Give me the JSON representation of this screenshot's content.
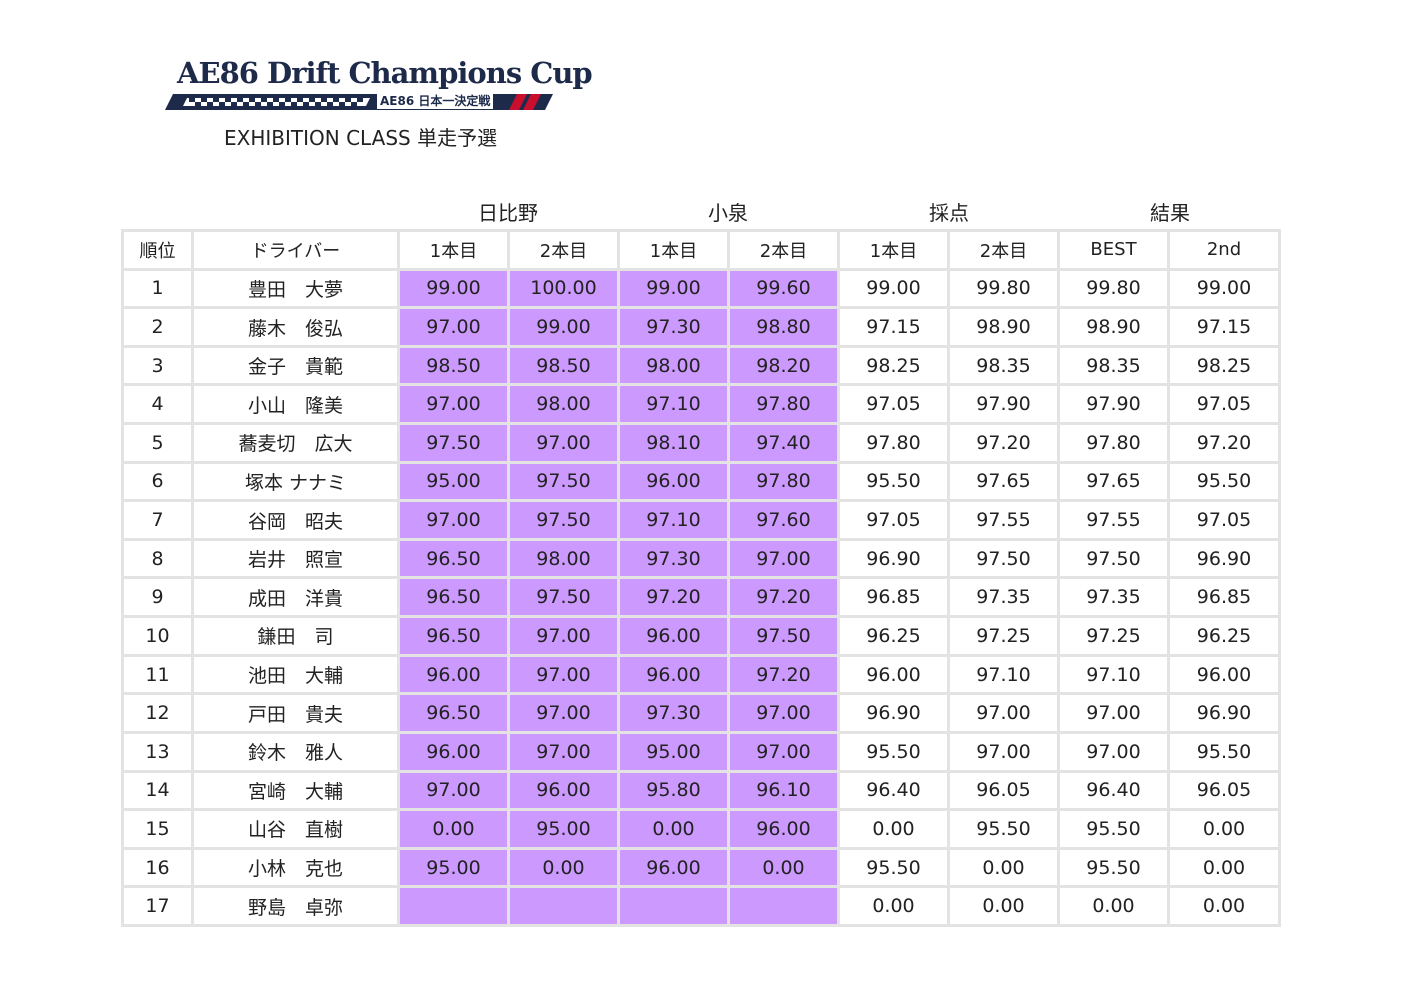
{
  "logo": {
    "title": "AE86 Drift Champions Cup",
    "subtitle": "AE86 日本一決定戦",
    "colors": {
      "navy": "#1d2a4a",
      "red": "#c8102e"
    }
  },
  "subtitle": "EXHIBITION CLASS 単走予選",
  "groups": [
    "日比野",
    "小泉",
    "採点",
    "結果"
  ],
  "headers": [
    "順位",
    "ドライバー",
    "1本目",
    "2本目",
    "1本目",
    "2本目",
    "1本目",
    "2本目",
    "BEST",
    "2nd"
  ],
  "highlight_color": "#cc99ff",
  "rows": [
    {
      "rank": "1",
      "driver": "豊田　大夢",
      "h1": "99.00",
      "h2": "100.00",
      "k1": "99.00",
      "k2": "99.60",
      "s1": "99.00",
      "s2": "99.80",
      "best": "99.80",
      "second": "99.00"
    },
    {
      "rank": "2",
      "driver": "藤木　俊弘",
      "h1": "97.00",
      "h2": "99.00",
      "k1": "97.30",
      "k2": "98.80",
      "s1": "97.15",
      "s2": "98.90",
      "best": "98.90",
      "second": "97.15"
    },
    {
      "rank": "3",
      "driver": "金子　貴範",
      "h1": "98.50",
      "h2": "98.50",
      "k1": "98.00",
      "k2": "98.20",
      "s1": "98.25",
      "s2": "98.35",
      "best": "98.35",
      "second": "98.25"
    },
    {
      "rank": "4",
      "driver": "小山　隆美",
      "h1": "97.00",
      "h2": "98.00",
      "k1": "97.10",
      "k2": "97.80",
      "s1": "97.05",
      "s2": "97.90",
      "best": "97.90",
      "second": "97.05"
    },
    {
      "rank": "5",
      "driver": "蕎麦切　広大",
      "h1": "97.50",
      "h2": "97.00",
      "k1": "98.10",
      "k2": "97.40",
      "s1": "97.80",
      "s2": "97.20",
      "best": "97.80",
      "second": "97.20"
    },
    {
      "rank": "6",
      "driver": "塚本 ナナミ",
      "h1": "95.00",
      "h2": "97.50",
      "k1": "96.00",
      "k2": "97.80",
      "s1": "95.50",
      "s2": "97.65",
      "best": "97.65",
      "second": "95.50"
    },
    {
      "rank": "7",
      "driver": "谷岡　昭夫",
      "h1": "97.00",
      "h2": "97.50",
      "k1": "97.10",
      "k2": "97.60",
      "s1": "97.05",
      "s2": "97.55",
      "best": "97.55",
      "second": "97.05"
    },
    {
      "rank": "8",
      "driver": "岩井　照宣",
      "h1": "96.50",
      "h2": "98.00",
      "k1": "97.30",
      "k2": "97.00",
      "s1": "96.90",
      "s2": "97.50",
      "best": "97.50",
      "second": "96.90"
    },
    {
      "rank": "9",
      "driver": "成田　洋貴",
      "h1": "96.50",
      "h2": "97.50",
      "k1": "97.20",
      "k2": "97.20",
      "s1": "96.85",
      "s2": "97.35",
      "best": "97.35",
      "second": "96.85"
    },
    {
      "rank": "10",
      "driver": "鎌田　司",
      "h1": "96.50",
      "h2": "97.00",
      "k1": "96.00",
      "k2": "97.50",
      "s1": "96.25",
      "s2": "97.25",
      "best": "97.25",
      "second": "96.25"
    },
    {
      "rank": "11",
      "driver": "池田　大輔",
      "h1": "96.00",
      "h2": "97.00",
      "k1": "96.00",
      "k2": "97.20",
      "s1": "96.00",
      "s2": "97.10",
      "best": "97.10",
      "second": "96.00"
    },
    {
      "rank": "12",
      "driver": "戸田　貴夫",
      "h1": "96.50",
      "h2": "97.00",
      "k1": "97.30",
      "k2": "97.00",
      "s1": "96.90",
      "s2": "97.00",
      "best": "97.00",
      "second": "96.90"
    },
    {
      "rank": "13",
      "driver": "鈴木　雅人",
      "h1": "96.00",
      "h2": "97.00",
      "k1": "95.00",
      "k2": "97.00",
      "s1": "95.50",
      "s2": "97.00",
      "best": "97.00",
      "second": "95.50"
    },
    {
      "rank": "14",
      "driver": "宮崎　大輔",
      "h1": "97.00",
      "h2": "96.00",
      "k1": "95.80",
      "k2": "96.10",
      "s1": "96.40",
      "s2": "96.05",
      "best": "96.40",
      "second": "96.05"
    },
    {
      "rank": "15",
      "driver": "山谷　直樹",
      "h1": "0.00",
      "h2": "95.00",
      "k1": "0.00",
      "k2": "96.00",
      "s1": "0.00",
      "s2": "95.50",
      "best": "95.50",
      "second": "0.00"
    },
    {
      "rank": "16",
      "driver": "小林　克也",
      "h1": "95.00",
      "h2": "0.00",
      "k1": "96.00",
      "k2": "0.00",
      "s1": "95.50",
      "s2": "0.00",
      "best": "95.50",
      "second": "0.00"
    },
    {
      "rank": "17",
      "driver": "野島　卓弥",
      "h1": "",
      "h2": "",
      "k1": "",
      "k2": "",
      "s1": "0.00",
      "s2": "0.00",
      "best": "0.00",
      "second": "0.00"
    }
  ]
}
